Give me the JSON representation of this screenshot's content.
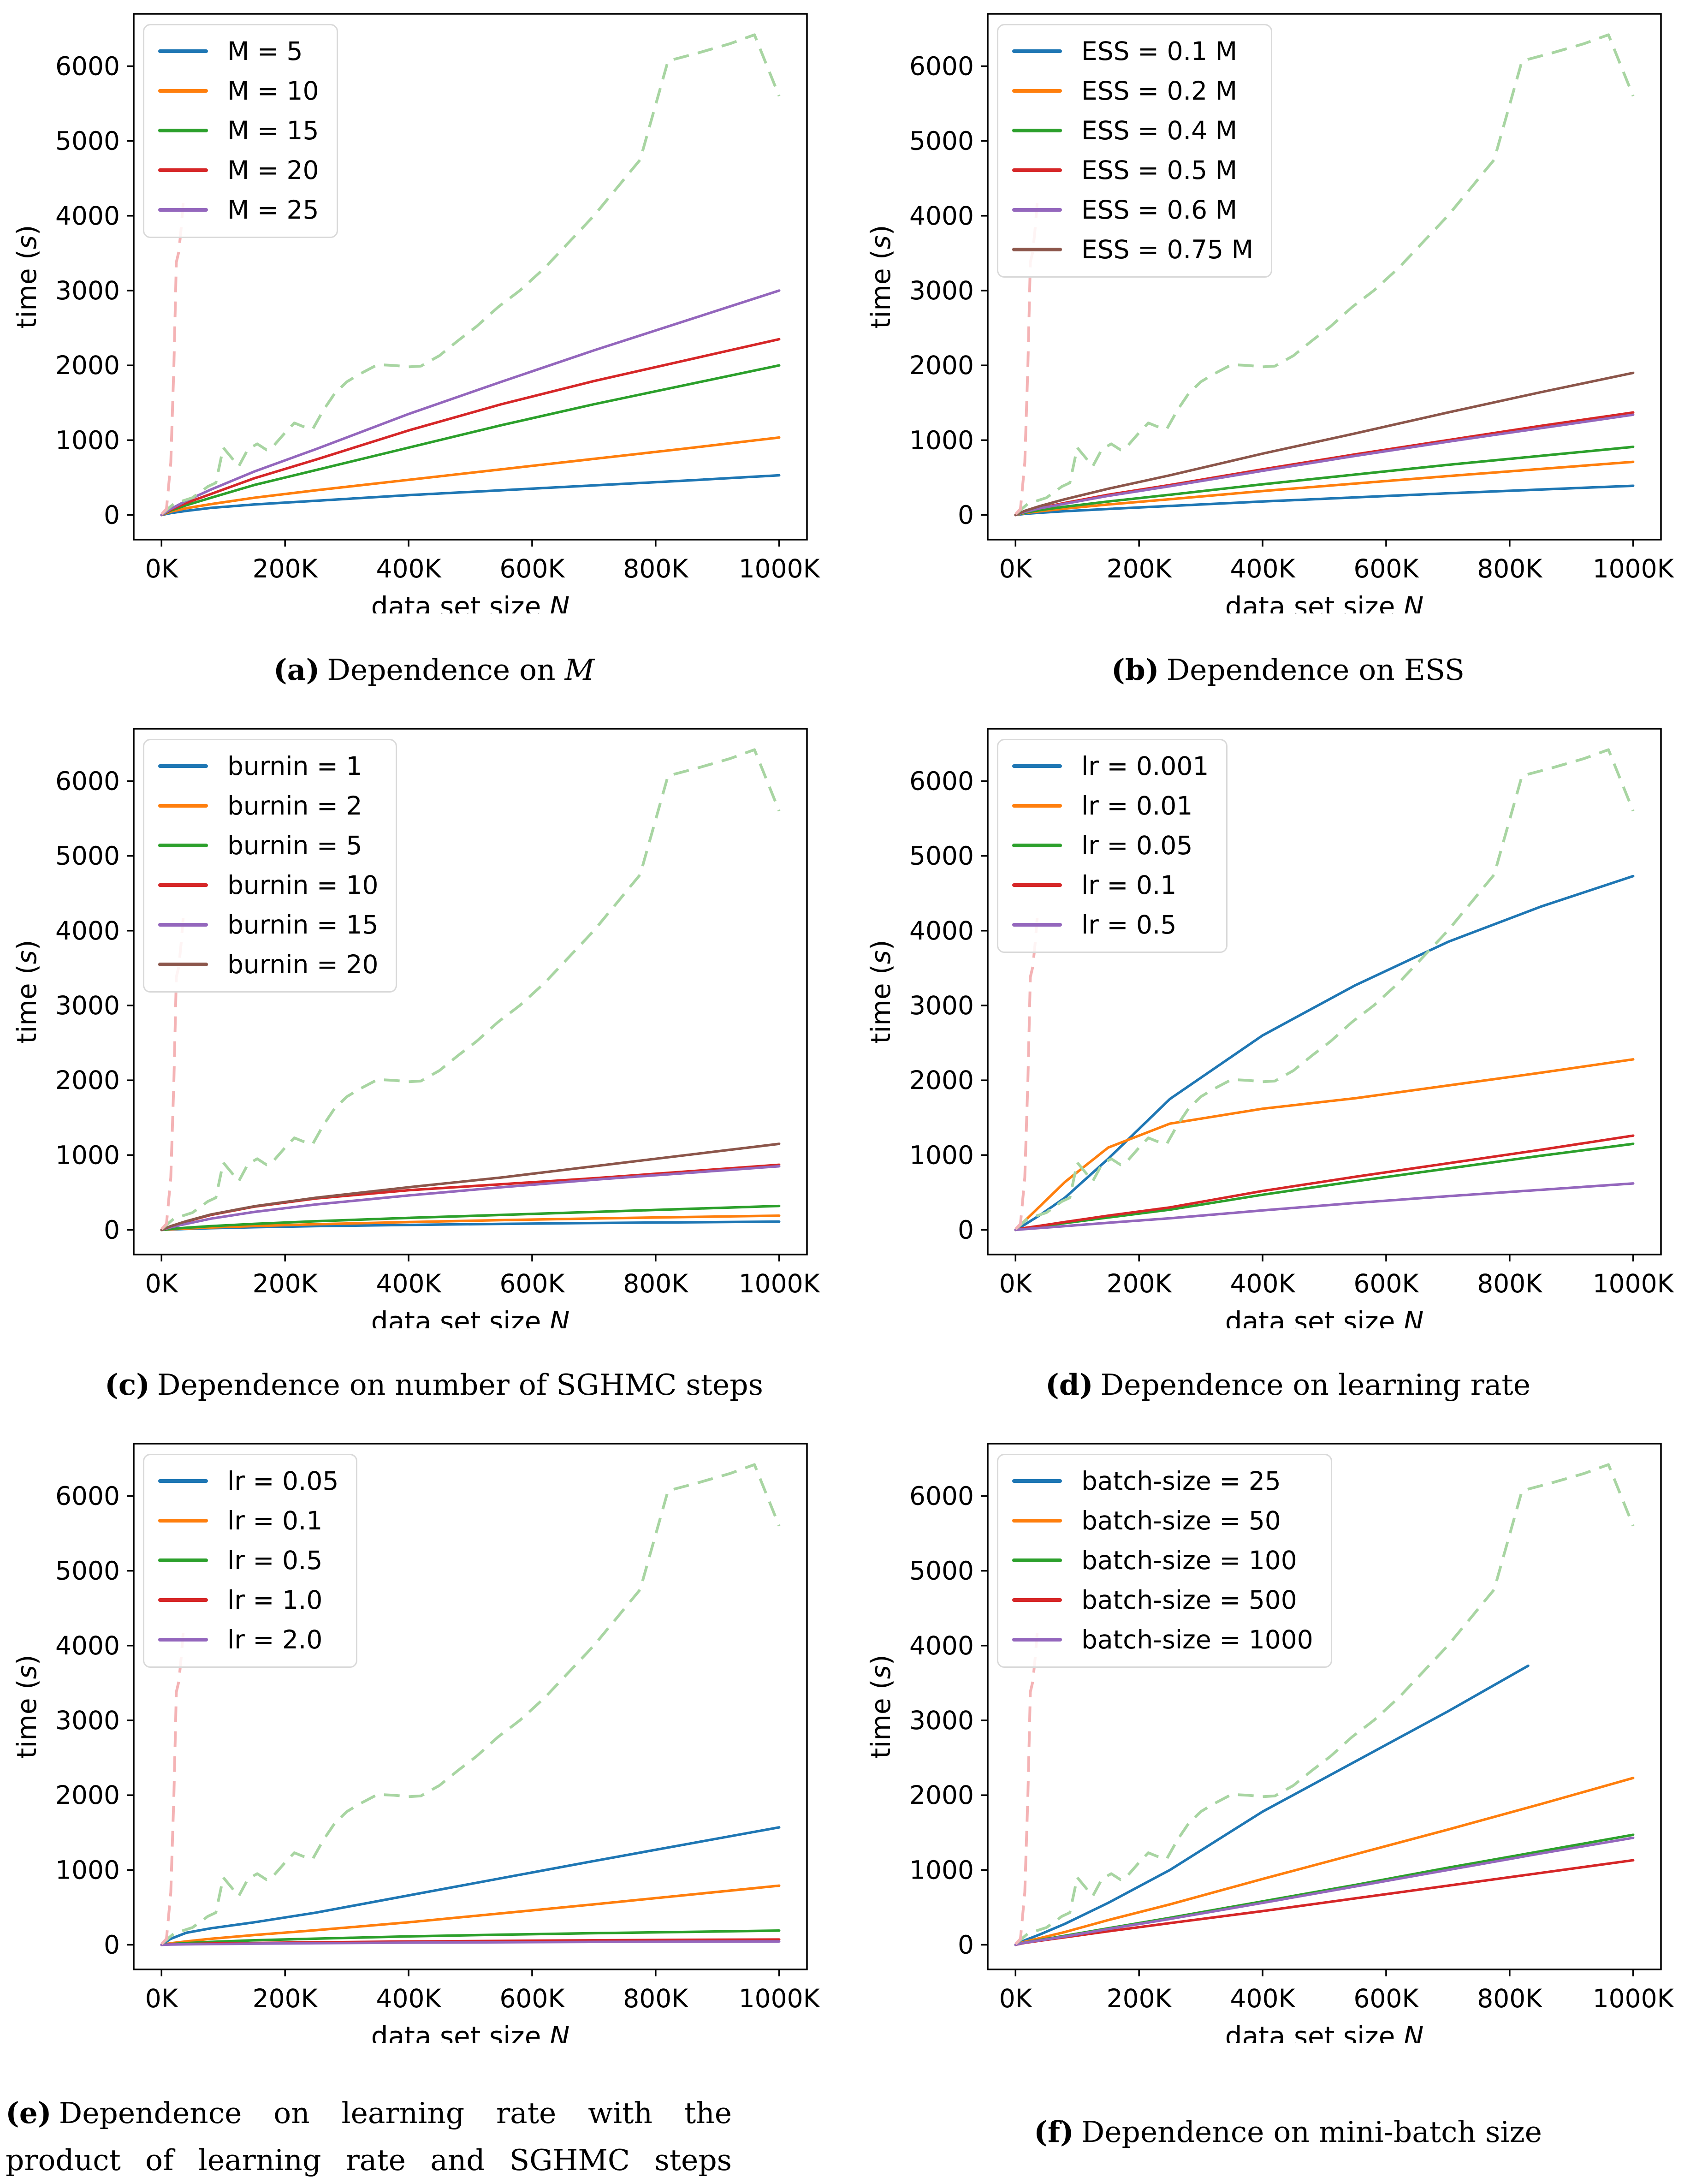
{
  "page": {
    "background": "#ffffff"
  },
  "colors": {
    "blue": "#1f77b4",
    "orange": "#ff7f0e",
    "green": "#2ca02c",
    "red": "#d62728",
    "purple": "#9467bd",
    "brown": "#8c564b",
    "ref_green_dashed": "#a8d5a2",
    "ref_pink_dashed": "#f4b3b5",
    "axis": "#000000"
  },
  "axes": {
    "xlim": [
      -45,
      1045
    ],
    "ylim": [
      -330,
      6700
    ],
    "xticks": [
      0,
      200,
      400,
      600,
      800,
      1000
    ],
    "xtick_labels": [
      "0K",
      "200K",
      "400K",
      "600K",
      "800K",
      "1000K"
    ],
    "yticks": [
      0,
      1000,
      2000,
      3000,
      4000,
      5000,
      6000
    ],
    "ytick_labels": [
      "0",
      "1000",
      "2000",
      "3000",
      "4000",
      "5000",
      "6000"
    ],
    "xlabel_segments": [
      {
        "t": "data set size "
      },
      {
        "t": "N",
        "i": true
      }
    ],
    "ylabel_segments": [
      {
        "t": "time ("
      },
      {
        "t": "s",
        "i": true
      },
      {
        "t": ")"
      }
    ],
    "grid": false,
    "legend_position": "upper-left"
  },
  "reference_series": [
    {
      "name": "ref_green_dashed",
      "color": "#a8d5a2",
      "style": "dashed",
      "x": [
        0,
        20,
        35,
        50,
        62,
        75,
        88,
        100,
        112,
        125,
        140,
        155,
        170,
        182,
        200,
        215,
        230,
        245,
        262,
        280,
        300,
        320,
        350,
        375,
        400,
        420,
        450,
        480,
        510,
        545,
        580,
        620,
        660,
        700,
        740,
        775,
        820,
        870,
        920,
        960,
        1000
      ],
      "y": [
        10,
        150,
        190,
        230,
        300,
        380,
        430,
        900,
        780,
        650,
        880,
        950,
        870,
        930,
        1100,
        1230,
        1180,
        1150,
        1400,
        1620,
        1780,
        1880,
        2010,
        2000,
        1980,
        1990,
        2130,
        2330,
        2520,
        2780,
        3000,
        3300,
        3650,
        4000,
        4400,
        4750,
        6070,
        6180,
        6300,
        6420,
        5600
      ]
    },
    {
      "name": "ref_pink_dashed",
      "color": "#f4b3b5",
      "style": "dashed",
      "x": [
        0,
        8,
        15,
        20,
        24,
        28,
        32,
        35
      ],
      "y": [
        10,
        80,
        700,
        2000,
        3380,
        3520,
        3850,
        4170
      ]
    }
  ],
  "chart_data": [
    {
      "id": "a",
      "type": "line",
      "caption": {
        "label": "(a)",
        "segments": [
          {
            "t": "Dependence on "
          },
          {
            "t": "M",
            "i": true
          }
        ],
        "align": "center"
      },
      "x": [
        0,
        15,
        40,
        80,
        150,
        250,
        400,
        550,
        700,
        850,
        1000
      ],
      "series": [
        {
          "name": "M = 5",
          "color": "#1f77b4",
          "y": [
            0,
            25,
            55,
            95,
            140,
            190,
            265,
            330,
            395,
            460,
            530
          ]
        },
        {
          "name": "M = 10",
          "color": "#ff7f0e",
          "y": [
            0,
            45,
            90,
            145,
            230,
            330,
            470,
            610,
            750,
            890,
            1035
          ]
        },
        {
          "name": "M = 15",
          "color": "#2ca02c",
          "y": [
            0,
            60,
            130,
            230,
            400,
            600,
            900,
            1200,
            1480,
            1740,
            2000
          ]
        },
        {
          "name": "M = 20",
          "color": "#d62728",
          "y": [
            0,
            70,
            160,
            280,
            490,
            740,
            1130,
            1480,
            1790,
            2070,
            2350
          ]
        },
        {
          "name": "M = 25",
          "color": "#9467bd",
          "y": [
            0,
            80,
            190,
            340,
            580,
            880,
            1350,
            1780,
            2200,
            2600,
            3000
          ]
        }
      ],
      "show_reference": true
    },
    {
      "id": "b",
      "type": "line",
      "caption": {
        "label": "(b)",
        "segments": [
          {
            "t": "Dependence on ESS"
          }
        ],
        "align": "center"
      },
      "x": [
        0,
        15,
        40,
        80,
        150,
        250,
        400,
        550,
        700,
        850,
        1000
      ],
      "series": [
        {
          "name": "ESS = 0.1 M",
          "color": "#1f77b4",
          "y": [
            0,
            15,
            30,
            50,
            80,
            120,
            180,
            235,
            290,
            340,
            390
          ]
        },
        {
          "name": "ESS = 0.2 M",
          "color": "#ff7f0e",
          "y": [
            0,
            25,
            50,
            85,
            140,
            210,
            320,
            420,
            520,
            615,
            710
          ]
        },
        {
          "name": "ESS = 0.4 M",
          "color": "#2ca02c",
          "y": [
            0,
            30,
            65,
            110,
            180,
            270,
            410,
            540,
            670,
            790,
            910
          ]
        },
        {
          "name": "ESS = 0.5 M",
          "color": "#d62728",
          "y": [
            0,
            45,
            95,
            160,
            270,
            400,
            610,
            810,
            1000,
            1190,
            1370
          ]
        },
        {
          "name": "ESS = 0.6 M",
          "color": "#9467bd",
          "y": [
            0,
            40,
            90,
            150,
            255,
            385,
            590,
            790,
            980,
            1160,
            1340
          ]
        },
        {
          "name": "ESS = 0.75 M",
          "color": "#8c564b",
          "y": [
            0,
            55,
            120,
            210,
            350,
            530,
            820,
            1090,
            1370,
            1640,
            1900
          ]
        }
      ],
      "show_reference": true
    },
    {
      "id": "c",
      "type": "line",
      "caption": {
        "label": "(c)",
        "segments": [
          {
            "t": "Dependence on number of SGHMC steps"
          }
        ],
        "align": "center"
      },
      "x": [
        0,
        15,
        40,
        80,
        150,
        250,
        400,
        550,
        700,
        850,
        1000
      ],
      "series": [
        {
          "name": "burnin = 1",
          "color": "#1f77b4",
          "y": [
            0,
            5,
            12,
            22,
            35,
            50,
            66,
            80,
            92,
            101,
            110
          ]
        },
        {
          "name": "burnin = 2",
          "color": "#ff7f0e",
          "y": [
            0,
            8,
            18,
            32,
            52,
            75,
            105,
            130,
            152,
            172,
            190
          ]
        },
        {
          "name": "burnin = 5",
          "color": "#2ca02c",
          "y": [
            0,
            12,
            28,
            50,
            80,
            115,
            160,
            200,
            240,
            280,
            320
          ]
        },
        {
          "name": "burnin = 10",
          "color": "#d62728",
          "y": [
            0,
            45,
            110,
            200,
            310,
            420,
            530,
            610,
            690,
            780,
            870
          ]
        },
        {
          "name": "burnin = 15",
          "color": "#9467bd",
          "y": [
            0,
            35,
            80,
            150,
            240,
            340,
            460,
            570,
            670,
            760,
            850
          ]
        },
        {
          "name": "burnin = 20",
          "color": "#8c564b",
          "y": [
            0,
            50,
            115,
            205,
            315,
            430,
            570,
            700,
            850,
            1000,
            1150
          ]
        }
      ],
      "show_reference": true
    },
    {
      "id": "d",
      "type": "line",
      "caption": {
        "label": "(d)",
        "segments": [
          {
            "t": "Dependence on learning rate"
          }
        ],
        "align": "center"
      },
      "x": [
        0,
        15,
        40,
        80,
        150,
        250,
        400,
        550,
        700,
        850,
        1000
      ],
      "series": [
        {
          "name": "lr = 0.001",
          "color": "#1f77b4",
          "y": [
            0,
            70,
            200,
            430,
            950,
            1750,
            2600,
            3270,
            3850,
            4320,
            4730
          ]
        },
        {
          "name": "lr = 0.01",
          "color": "#ff7f0e",
          "y": [
            0,
            120,
            320,
            640,
            1100,
            1420,
            1620,
            1760,
            1930,
            2100,
            2280
          ]
        },
        {
          "name": "lr = 0.05",
          "color": "#2ca02c",
          "y": [
            0,
            20,
            45,
            90,
            165,
            270,
            470,
            650,
            820,
            990,
            1150
          ]
        },
        {
          "name": "lr = 0.1",
          "color": "#d62728",
          "y": [
            0,
            25,
            55,
            105,
            190,
            300,
            520,
            710,
            890,
            1070,
            1260
          ]
        },
        {
          "name": "lr = 0.5",
          "color": "#9467bd",
          "y": [
            0,
            10,
            25,
            50,
            95,
            155,
            260,
            360,
            450,
            535,
            620
          ]
        }
      ],
      "show_reference": true
    },
    {
      "id": "e",
      "type": "line",
      "caption": {
        "label": "(e)",
        "segments": [
          {
            "t": "Dependence on learning rate with the product of learning rate and SGHMC steps constant"
          }
        ],
        "align": "justify"
      },
      "x": [
        0,
        15,
        40,
        80,
        150,
        250,
        400,
        550,
        700,
        850,
        1000
      ],
      "series": [
        {
          "name": "lr = 0.05",
          "color": "#1f77b4",
          "y": [
            0,
            80,
            160,
            220,
            300,
            430,
            660,
            890,
            1120,
            1345,
            1570
          ]
        },
        {
          "name": "lr = 0.1",
          "color": "#ff7f0e",
          "y": [
            0,
            20,
            45,
            80,
            130,
            195,
            300,
            420,
            540,
            665,
            790
          ]
        },
        {
          "name": "lr = 0.5",
          "color": "#2ca02c",
          "y": [
            0,
            10,
            22,
            38,
            60,
            82,
            112,
            135,
            155,
            172,
            190
          ]
        },
        {
          "name": "lr = 1.0",
          "color": "#d62728",
          "y": [
            0,
            5,
            10,
            16,
            24,
            33,
            44,
            52,
            60,
            66,
            70
          ]
        },
        {
          "name": "lr = 2.0",
          "color": "#9467bd",
          "y": [
            0,
            3,
            6,
            10,
            15,
            21,
            28,
            33,
            38,
            42,
            45
          ]
        }
      ],
      "show_reference": true
    },
    {
      "id": "f",
      "type": "line",
      "caption": {
        "label": "(f)",
        "segments": [
          {
            "t": "Dependence on mini-batch size"
          }
        ],
        "align": "center"
      },
      "x": [
        0,
        15,
        40,
        80,
        150,
        250,
        400,
        550,
        700,
        850,
        1000
      ],
      "series": [
        {
          "name": "batch-size = 25",
          "color": "#1f77b4",
          "x": [
            0,
            15,
            40,
            80,
            150,
            250,
            400,
            550,
            700,
            830
          ],
          "y": [
            0,
            60,
            140,
            280,
            560,
            1000,
            1780,
            2450,
            3120,
            3730
          ]
        },
        {
          "name": "batch-size = 50",
          "color": "#ff7f0e",
          "y": [
            0,
            40,
            90,
            170,
            330,
            540,
            880,
            1210,
            1540,
            1880,
            2230
          ]
        },
        {
          "name": "batch-size = 100",
          "color": "#2ca02c",
          "y": [
            0,
            30,
            65,
            120,
            220,
            360,
            580,
            800,
            1030,
            1250,
            1470
          ]
        },
        {
          "name": "batch-size = 500",
          "color": "#d62728",
          "y": [
            0,
            25,
            55,
            100,
            180,
            290,
            450,
            620,
            790,
            960,
            1130
          ]
        },
        {
          "name": "batch-size = 1000",
          "color": "#9467bd",
          "y": [
            0,
            28,
            60,
            110,
            210,
            345,
            560,
            780,
            1000,
            1220,
            1430
          ]
        }
      ],
      "show_reference": true
    }
  ]
}
